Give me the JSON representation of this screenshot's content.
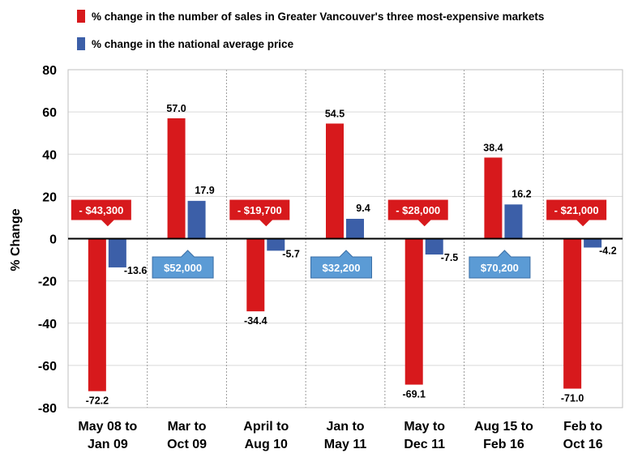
{
  "chart_data": {
    "type": "bar",
    "ylabel": "% Change",
    "ylim": [
      -80,
      80
    ],
    "yticks": [
      80,
      60,
      40,
      20,
      0,
      -20,
      -40,
      -60,
      -80
    ],
    "grid": true,
    "legend_position": "top",
    "categories": [
      [
        "May 08 to",
        "Jan 09"
      ],
      [
        "Mar to",
        "Oct 09"
      ],
      [
        "April to",
        "Aug 10"
      ],
      [
        "Jan to",
        "May 11"
      ],
      [
        "May to",
        "Dec 11"
      ],
      [
        "Aug 15 to",
        "Feb 16"
      ],
      [
        "Feb to",
        "Oct 16"
      ]
    ],
    "series": [
      {
        "name": "% change in the number of sales in Greater Vancouver's three most-expensive markets",
        "color": "#d7191c",
        "values": [
          -72.2,
          57.0,
          -34.4,
          54.5,
          -69.1,
          38.4,
          -71.0
        ],
        "labels": [
          "-72.2",
          "57.0",
          "-34.4",
          "54.5",
          "-69.1",
          "38.4",
          "-71.0"
        ]
      },
      {
        "name": "% change in the national average price",
        "color": "#3c5fa8",
        "values": [
          -13.6,
          17.9,
          -5.7,
          9.4,
          -7.5,
          16.2,
          -4.2
        ],
        "labels": [
          "-13.6",
          "17.9",
          "-5.7",
          "9.4",
          "-7.5",
          "16.2",
          "-4.2"
        ]
      }
    ],
    "annotations": [
      {
        "category_index": 0,
        "text": "- $43,300",
        "direction": "down",
        "color": "#d7191c"
      },
      {
        "category_index": 1,
        "text": "$52,000",
        "direction": "up",
        "color": "#5b9bd5"
      },
      {
        "category_index": 2,
        "text": "- $19,700",
        "direction": "down",
        "color": "#d7191c"
      },
      {
        "category_index": 3,
        "text": "$32,200",
        "direction": "up",
        "color": "#5b9bd5"
      },
      {
        "category_index": 4,
        "text": "- $28,000",
        "direction": "down",
        "color": "#d7191c"
      },
      {
        "category_index": 5,
        "text": "$70,200",
        "direction": "up",
        "color": "#5b9bd5"
      },
      {
        "category_index": 6,
        "text": "- $21,000",
        "direction": "down",
        "color": "#d7191c"
      }
    ]
  }
}
